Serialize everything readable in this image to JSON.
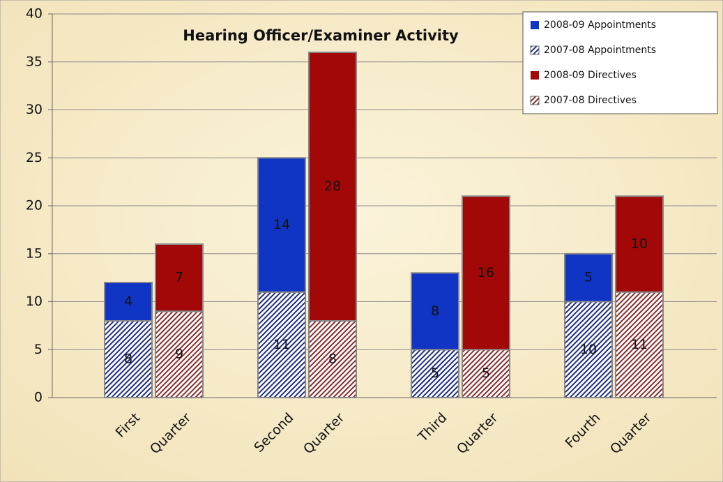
{
  "chart_data": {
    "type": "stacked_bar",
    "title": "Hearing Officer/Examiner Activity",
    "categories": [
      "First",
      "Quarter",
      "Second",
      "Quarter",
      "Third",
      "Quarter",
      "Fourth",
      "Quarter"
    ],
    "series": [
      {
        "name": "2008-09 Appointments",
        "color": "#1034c4",
        "hatch": false,
        "values": [
          4,
          null,
          14,
          null,
          8,
          null,
          5,
          null
        ]
      },
      {
        "name": "2007-08 Appointments",
        "color": "#1c2c86",
        "hatch": true,
        "values": [
          8,
          null,
          11,
          null,
          5,
          null,
          10,
          null
        ]
      },
      {
        "name": "2008-09 Directives",
        "color": "#a30808",
        "hatch": false,
        "values": [
          null,
          7,
          null,
          28,
          null,
          16,
          null,
          10
        ]
      },
      {
        "name": "2007-08 Directives",
        "color": "#8a2a2a",
        "hatch": true,
        "values": [
          null,
          9,
          null,
          8,
          null,
          5,
          null,
          11
        ]
      }
    ],
    "ylim": [
      0,
      40
    ],
    "yticks": [
      0,
      5,
      10,
      15,
      20,
      25,
      30,
      35,
      40
    ],
    "grid": true,
    "legend": "top-right"
  }
}
